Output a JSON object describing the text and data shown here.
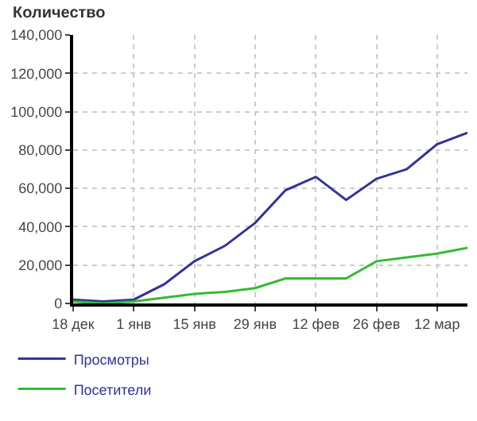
{
  "chart_data": {
    "type": "line",
    "ylabel": "Количество",
    "categories": [
      "18 дек",
      null,
      "1 янв",
      null,
      "15 янв",
      null,
      "29 янв",
      null,
      "12 фев",
      null,
      "26 фев",
      null,
      "12 мар",
      null
    ],
    "series": [
      {
        "name": "Просмотры",
        "color": "#33339a",
        "values": [
          2000,
          1000,
          2000,
          10000,
          22000,
          30000,
          42000,
          59000,
          66000,
          54000,
          65000,
          70000,
          83000,
          89000
        ]
      },
      {
        "name": "Посетители",
        "color": "#33bb33",
        "values": [
          1000,
          0,
          1000,
          3000,
          5000,
          6000,
          8000,
          13000,
          13000,
          13000,
          22000,
          24000,
          26000,
          29000
        ]
      }
    ],
    "ylim": [
      0,
      140000
    ],
    "yticks": [
      {
        "value": 0,
        "label": "0"
      },
      {
        "value": 20000,
        "label": "20,000"
      },
      {
        "value": 40000,
        "label": "40,000"
      },
      {
        "value": 60000,
        "label": "60,000"
      },
      {
        "value": 80000,
        "label": "80,000"
      },
      {
        "value": 100000,
        "label": "100,000"
      },
      {
        "value": 120000,
        "label": "120,000"
      },
      {
        "value": 140000,
        "label": "140,000"
      }
    ],
    "grid": true,
    "legend": "bottom left",
    "marker": "none",
    "line_style": "solid"
  }
}
